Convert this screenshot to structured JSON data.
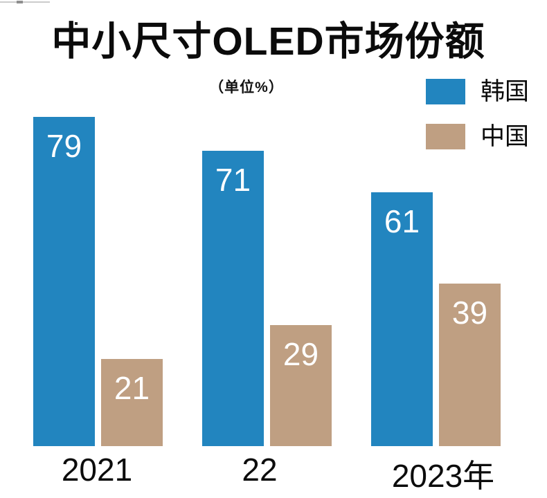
{
  "chart_data": {
    "type": "bar",
    "title": "中小尺寸OLED市场份额",
    "unit_label": "（单位%）",
    "categories": [
      "2021",
      "22",
      "2023年"
    ],
    "series": [
      {
        "name": "韩国",
        "color": "#2285bf",
        "values": [
          79,
          71,
          61
        ]
      },
      {
        "name": "中国",
        "color": "#bf9f82",
        "values": [
          21,
          29,
          39
        ]
      }
    ],
    "ylim": [
      0,
      100
    ],
    "grid": false,
    "axes_visible": false,
    "legend_position": "top-right",
    "value_label_style": "white, inside top of each bar",
    "value_labels": {
      "韩国": [
        79,
        71,
        61
      ],
      "中国": [
        21,
        29,
        39
      ]
    }
  },
  "colors": {
    "korea_blue": "#2285bf",
    "china_tan": "#bf9f82",
    "title_text": "#0b0b0b",
    "value_text": "#ffffff",
    "background": "#ffffff"
  }
}
